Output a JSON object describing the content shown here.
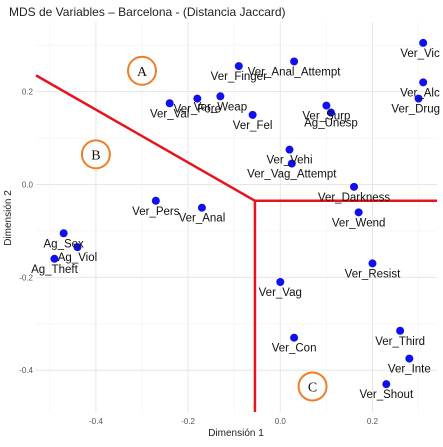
{
  "chart_data": {
    "type": "scatter",
    "title": "MDS de Variables – Barcelona - (Distancia Jaccard)",
    "xlabel": "Dimensión 1",
    "ylabel": "Dimensión 2",
    "xlim": [
      -0.53,
      0.34
    ],
    "ylim": [
      -0.49,
      0.35
    ],
    "x_ticks": [
      -0.4,
      -0.2,
      0.0,
      0.2
    ],
    "y_ticks": [
      -0.4,
      -0.2,
      0.0,
      0.2
    ],
    "x_tick_labels": [
      "-0.4",
      "-0.2",
      "0.0",
      "0.2"
    ],
    "y_tick_labels": [
      "-0.4",
      "-0.2",
      "0.0",
      "0.2"
    ],
    "grid": true,
    "point_color": "#1010ee",
    "line_color": "#e8141c",
    "region_color": "#f07d28",
    "points": [
      {
        "label": "Ver_Vic",
        "x": 0.31,
        "y": 0.305
      },
      {
        "label": "Ver_Anal_Attempt",
        "x": 0.03,
        "y": 0.265
      },
      {
        "label": "Ver_Finger",
        "x": -0.09,
        "y": 0.255
      },
      {
        "label": "Ver_Alc",
        "x": 0.31,
        "y": 0.22
      },
      {
        "label": "Ver_Fore",
        "x": -0.18,
        "y": 0.185
      },
      {
        "label": "Ver_Weap",
        "x": -0.13,
        "y": 0.19
      },
      {
        "label": "Ver_Val",
        "x": -0.24,
        "y": 0.175
      },
      {
        "label": "Ver_Surp",
        "x": 0.1,
        "y": 0.17
      },
      {
        "label": "Ver_Drug",
        "x": 0.3,
        "y": 0.185
      },
      {
        "label": "Ag_Unesp",
        "x": 0.11,
        "y": 0.155
      },
      {
        "label": "Ver_Fel",
        "x": -0.06,
        "y": 0.15
      },
      {
        "label": "Ver_Vehi",
        "x": 0.02,
        "y": 0.075
      },
      {
        "label": "Ver_Vag_Attempt",
        "x": 0.025,
        "y": 0.045
      },
      {
        "label": "Ver_Darkness",
        "x": 0.16,
        "y": -0.005
      },
      {
        "label": "Ver_Pers",
        "x": -0.27,
        "y": -0.035
      },
      {
        "label": "Ver_Wend",
        "x": 0.17,
        "y": -0.06
      },
      {
        "label": "Ver_Anal",
        "x": -0.17,
        "y": -0.05
      },
      {
        "label": "Ag_Sex",
        "x": -0.47,
        "y": -0.105
      },
      {
        "label": "Ag_Viol",
        "x": -0.44,
        "y": -0.135
      },
      {
        "label": "Ag_Theft",
        "x": -0.49,
        "y": -0.16
      },
      {
        "label": "Ver_Resist",
        "x": 0.2,
        "y": -0.17
      },
      {
        "label": "Ver_Vag",
        "x": 0.0,
        "y": -0.21
      },
      {
        "label": "Ver_Third",
        "x": 0.26,
        "y": -0.315
      },
      {
        "label": "Ver_Con",
        "x": 0.03,
        "y": -0.33
      },
      {
        "label": "Ver_Inte",
        "x": 0.28,
        "y": -0.375
      },
      {
        "label": "Ver_Shout",
        "x": 0.23,
        "y": -0.43
      }
    ],
    "lines": [
      {
        "from": [
          -0.53,
          0.235
        ],
        "to": [
          -0.055,
          -0.035
        ]
      },
      {
        "from": [
          -0.055,
          -0.035
        ],
        "to": [
          0.34,
          -0.035
        ]
      },
      {
        "from": [
          -0.055,
          -0.035
        ],
        "to": [
          -0.055,
          -0.49
        ]
      }
    ],
    "regions": [
      {
        "letter": "A",
        "x": -0.3,
        "y": 0.245
      },
      {
        "letter": "B",
        "x": -0.4,
        "y": 0.065
      },
      {
        "letter": "C",
        "x": 0.07,
        "y": -0.435
      }
    ]
  }
}
